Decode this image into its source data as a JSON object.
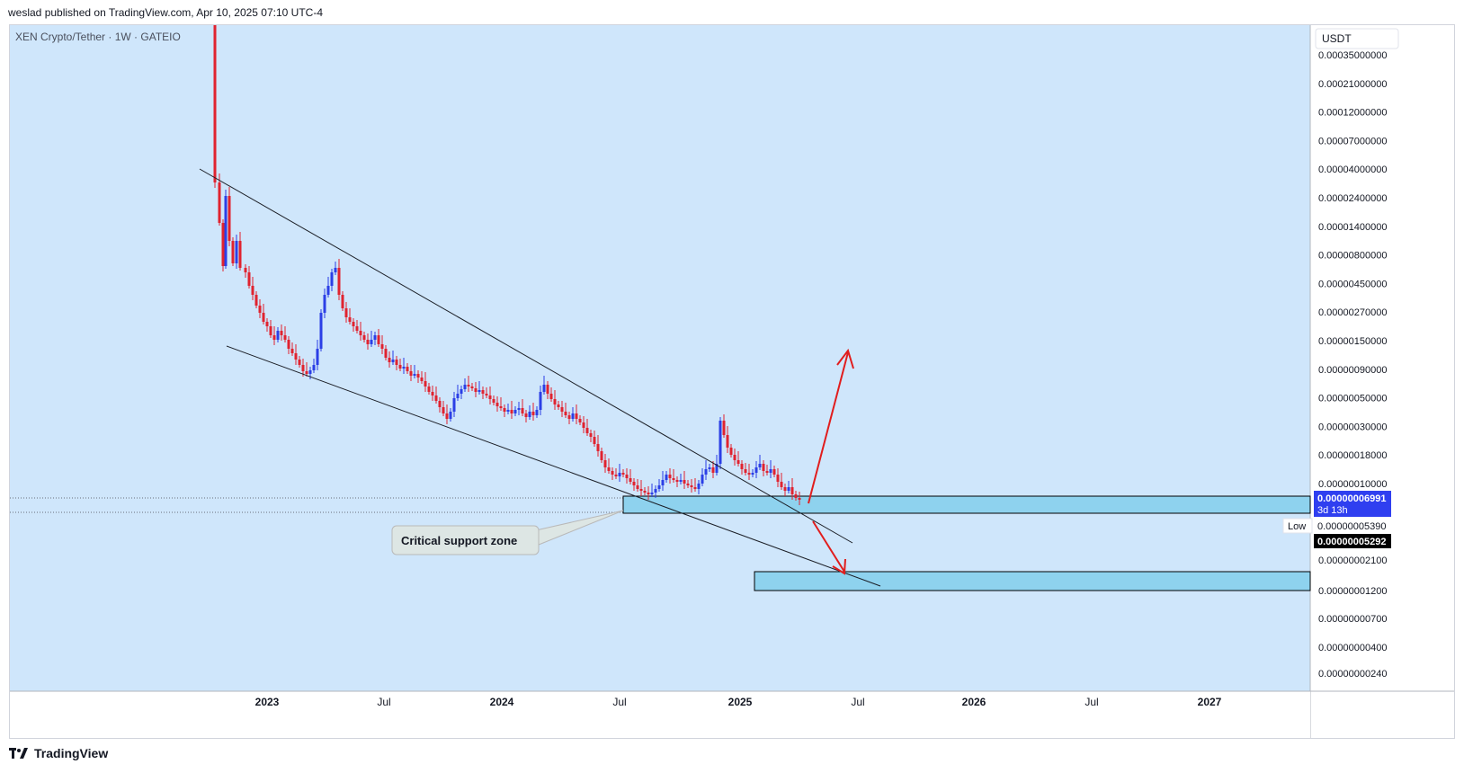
{
  "attribution": "weslad published on TradingView.com, Apr 10, 2025 07:10 UTC-4",
  "symbol_title": "XEN Crypto/Tether · 1W · GATEIO",
  "currency_label": "USDT",
  "footer_brand": "TradingView",
  "colors": {
    "chart_bg": "#cfe6fb",
    "up": "#2b3fe6",
    "down": "#e0232f",
    "zone_fill": "#8ed2ee",
    "arrow": "#e11d1d",
    "price_tag": "#2f3ff0"
  },
  "annotation": {
    "callout": "Critical support zone"
  },
  "price_tags": {
    "last_price": "0.00000006991",
    "countdown": "3d 13h",
    "low_label": "Low",
    "low_value": "0.00000005390",
    "current_value": "0.00000005292"
  },
  "chart_data": {
    "type": "candlestick",
    "title": "XEN Crypto/Tether · 1W · GATEIO",
    "y_scale": "log",
    "y_ticks": [
      "0.00035000000",
      "0.00021000000",
      "0.00012000000",
      "0.00007000000",
      "0.00004000000",
      "0.00002400000",
      "0.00001400000",
      "0.00000800000",
      "0.00000450000",
      "0.00000270000",
      "0.00000150000",
      "0.00000090000",
      "0.00000050000",
      "0.00000030000",
      "0.00000018000",
      "0.00000010000",
      "0.00000002100",
      "0.00000001200",
      "0.00000000700",
      "0.00000000400",
      "0.00000000240"
    ],
    "x_ticks": [
      "2023",
      "Jul",
      "2024",
      "Jul",
      "2025",
      "Jul",
      "2026",
      "Jul",
      "2027"
    ],
    "x_range": [
      "2022-10",
      "2027-06"
    ],
    "close_trend": [
      [
        "2022-10",
        3e-05
      ],
      [
        "2022-11",
        6e-06
      ],
      [
        "2023-01",
        2.5e-06
      ],
      [
        "2023-04",
        8e-07
      ],
      [
        "2023-05",
        1.2e-05
      ],
      [
        "2023-07",
        2.2e-06
      ],
      [
        "2023-09",
        1.1e-06
      ],
      [
        "2023-11",
        3.4e-07
      ],
      [
        "2023-12",
        6e-07
      ],
      [
        "2024-03",
        4e-07
      ],
      [
        "2024-04",
        7.5e-07
      ],
      [
        "2024-06",
        1.6e-07
      ],
      [
        "2024-08",
        8.5e-08
      ],
      [
        "2024-11",
        9e-08
      ],
      [
        "2024-12",
        4e-07
      ],
      [
        "2025-02",
        1.3e-07
      ],
      [
        "2025-04",
        7e-08
      ]
    ],
    "support_zone": [
      "0.00000005292",
      "0.00000006991"
    ],
    "target_zone": [
      "0.00000001200",
      "0.00000002100"
    ]
  }
}
